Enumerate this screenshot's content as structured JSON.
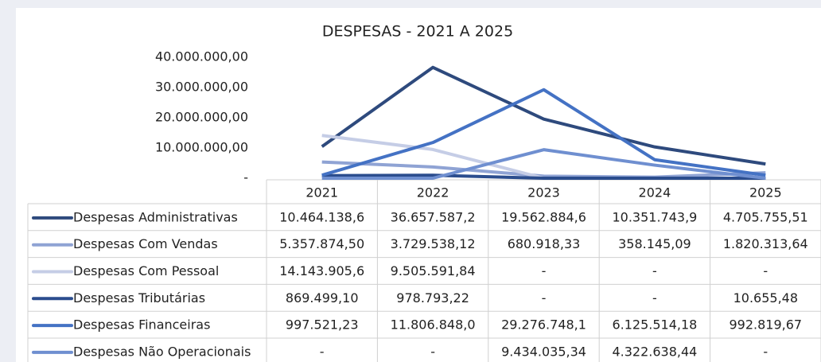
{
  "chart_data": {
    "type": "line",
    "title": "DESPESAS - 2021 A 2025",
    "categories": [
      "2021",
      "2022",
      "2023",
      "2024",
      "2025"
    ],
    "ylim": [
      0,
      40000000
    ],
    "yticks": [
      {
        "value": 0,
        "label": "-"
      },
      {
        "value": 10000000,
        "label": "10.000.000,00"
      },
      {
        "value": 20000000,
        "label": "20.000.000,00"
      },
      {
        "value": 30000000,
        "label": "30.000.000,00"
      },
      {
        "value": 40000000,
        "label": "40.000.000,00"
      }
    ],
    "series": [
      {
        "name": "Despesas Administrativas",
        "color": "#2e4a7d",
        "values": [
          10464138.6,
          36657587.2,
          19562884.6,
          10351743.9,
          4705755.51
        ],
        "value_labels": [
          "10.464.138,6",
          "36.657.587,2",
          "19.562.884,6",
          "10.351.743,9",
          "4.705.755,51"
        ]
      },
      {
        "name": "Despesas Com Vendas",
        "color": "#8fa3d4",
        "values": [
          5357874.5,
          3729538.12,
          680918.33,
          358145.09,
          1820313.64
        ],
        "value_labels": [
          "5.357.874,50",
          "3.729.538,12",
          "680.918,33",
          "358.145,09",
          "1.820.313,64"
        ]
      },
      {
        "name": "Despesas Com Pessoal",
        "color": "#c5cde6",
        "values": [
          14143905.6,
          9505591.84,
          0,
          0,
          0
        ],
        "value_labels": [
          "14.143.905,6",
          "9.505.591,84",
          "-",
          "-",
          "-"
        ]
      },
      {
        "name": "Despesas Tributárias",
        "color": "#2b4d8e",
        "values": [
          869499.1,
          978793.22,
          0,
          0,
          10655.48
        ],
        "value_labels": [
          "869.499,10",
          "978.793,22",
          "-",
          "-",
          "10.655,48"
        ]
      },
      {
        "name": "Despesas Financeiras",
        "color": "#4472c4",
        "values": [
          997521.23,
          11806848.0,
          29276748.1,
          6125514.18,
          992819.67
        ],
        "value_labels": [
          "997.521,23",
          "11.806.848,0",
          "29.276.748,1",
          "6.125.514,18",
          "992.819,67"
        ]
      },
      {
        "name": "Despesas Não Operacionais",
        "color": "#6f8fd0",
        "values": [
          0,
          0,
          9434035.34,
          4322638.44,
          0
        ],
        "value_labels": [
          "-",
          "-",
          "9.434.035,34",
          "4.322.638,44",
          "-"
        ]
      }
    ]
  }
}
